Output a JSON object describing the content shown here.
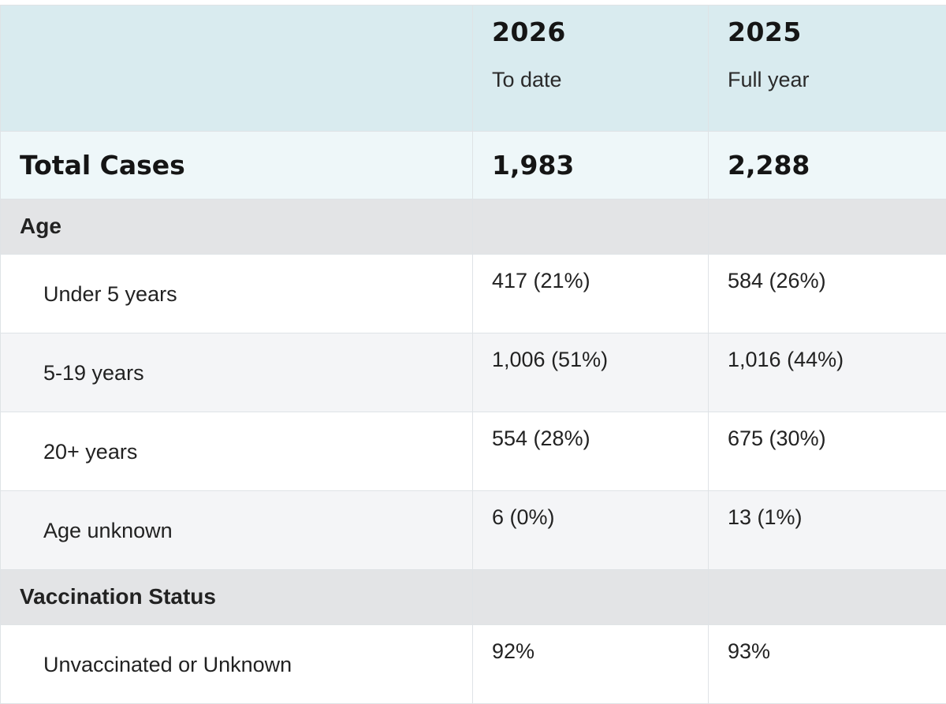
{
  "header": {
    "columns": [
      {
        "year": "2026",
        "subtitle": "To date"
      },
      {
        "year": "2025",
        "subtitle": "Full year"
      }
    ]
  },
  "total": {
    "label": "Total Cases",
    "values": [
      "1,983",
      "2,288"
    ]
  },
  "sections": [
    {
      "label": "Age",
      "rows": [
        {
          "label": "Under 5 years",
          "values": [
            "417 (21%)",
            "584 (26%)"
          ]
        },
        {
          "label": "5-19 years",
          "values": [
            "1,006 (51%)",
            "1,016 (44%)"
          ]
        },
        {
          "label": "20+ years",
          "values": [
            "554 (28%)",
            "675 (30%)"
          ]
        },
        {
          "label": "Age unknown",
          "values": [
            "6 (0%)",
            "13 (1%)"
          ]
        }
      ]
    },
    {
      "label": "Vaccination Status",
      "rows": [
        {
          "label": "Unvaccinated or Unknown",
          "values": [
            "92%",
            "93%"
          ]
        }
      ]
    }
  ],
  "colors": {
    "header_bg": "#d9ebef",
    "total_bg": "#eef7f9",
    "section_bg": "#e3e4e6",
    "alt_row_bg": "#f4f5f7",
    "border": "#dfe3e6"
  }
}
